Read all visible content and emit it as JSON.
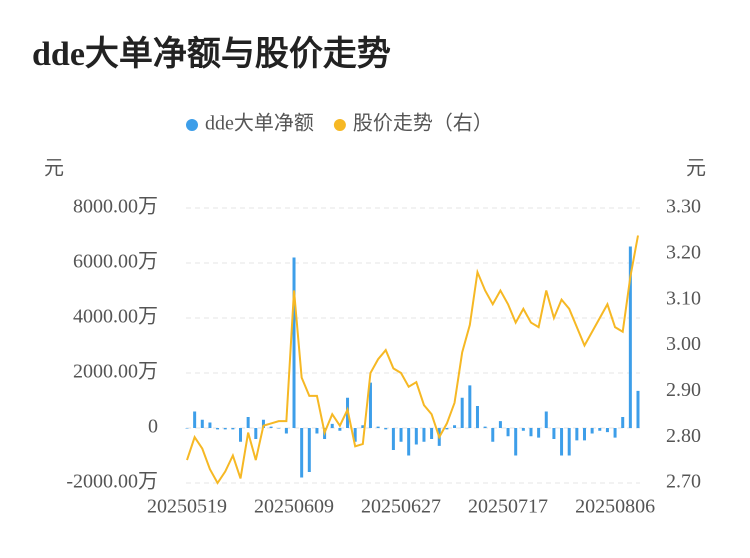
{
  "chart_data": {
    "type": "bar-line",
    "title": "dde大单净额与股价走势",
    "y_label": "元",
    "y2_label": "元",
    "categories": [
      "20250519",
      null,
      null,
      null,
      null,
      null,
      null,
      null,
      null,
      null,
      null,
      null,
      null,
      null,
      "20250609",
      null,
      null,
      null,
      null,
      null,
      null,
      null,
      null,
      null,
      null,
      null,
      null,
      null,
      "20250627",
      null,
      null,
      null,
      null,
      null,
      null,
      null,
      null,
      null,
      null,
      null,
      null,
      null,
      "20250717",
      null,
      null,
      null,
      null,
      null,
      null,
      null,
      null,
      null,
      null,
      null,
      null,
      null,
      "20250806",
      null,
      null,
      null
    ],
    "series": [
      {
        "name": "dde大单净额",
        "type": "bar",
        "color": "#3d9ee9",
        "values": [
          0,
          600,
          300,
          200,
          -50,
          -50,
          -50,
          -500,
          400,
          -400,
          300,
          50,
          0,
          -200,
          6200,
          -1800,
          -1600,
          -200,
          -400,
          150,
          -100,
          1100,
          -500,
          100,
          1650,
          50,
          -50,
          -800,
          -500,
          -1000,
          -600,
          -500,
          -400,
          -650,
          -50,
          100,
          1100,
          1550,
          800,
          50,
          -500,
          250,
          -300,
          -1000,
          -100,
          -300,
          -350,
          600,
          -400,
          -1000,
          -1000,
          -450,
          -450,
          -200,
          -100,
          -150,
          -350,
          400,
          6600,
          1350
        ]
      },
      {
        "name": "股价走势（右）",
        "type": "line",
        "axis": "y2",
        "color": "#f6b824",
        "values": [
          2.75,
          2.8,
          2.775,
          2.73,
          2.7,
          2.725,
          2.76,
          2.71,
          2.81,
          2.75,
          2.825,
          2.83,
          2.835,
          2.835,
          3.12,
          2.93,
          2.89,
          2.89,
          2.81,
          2.85,
          2.825,
          2.86,
          2.78,
          2.785,
          2.94,
          2.97,
          2.99,
          2.95,
          2.94,
          2.91,
          2.92,
          2.87,
          2.85,
          2.8,
          2.83,
          2.875,
          2.985,
          3.045,
          3.16,
          3.12,
          3.09,
          3.12,
          3.09,
          3.05,
          3.08,
          3.05,
          3.04,
          3.12,
          3.06,
          3.1,
          3.08,
          3.04,
          3,
          3.03,
          3.06,
          3.09,
          3.04,
          3.03,
          3.15,
          3.24
        ]
      }
    ],
    "ylim": [
      -2000,
      8000
    ],
    "yticks": [
      {
        "value": -2000,
        "label": "-2000.00万"
      },
      0,
      {
        "value": 2000,
        "label": "2000.00万"
      },
      {
        "value": 4000,
        "label": "4000.00万"
      },
      {
        "value": 6000,
        "label": "6000.00万"
      },
      {
        "value": 8000,
        "label": "8000.00万"
      }
    ],
    "y2lim": [
      2.7,
      3.3
    ],
    "y2ticks": [
      {
        "value": 2.7,
        "label": "2.70"
      },
      {
        "value": 2.8,
        "label": "2.80"
      },
      {
        "value": 2.9,
        "label": "2.90"
      },
      {
        "value": 3.0,
        "label": "3.00"
      },
      {
        "value": 3.1,
        "label": "3.10"
      },
      {
        "value": 3.2,
        "label": "3.20"
      },
      {
        "value": 3.3,
        "label": "3.30"
      }
    ],
    "grid": true,
    "legend": "top"
  }
}
